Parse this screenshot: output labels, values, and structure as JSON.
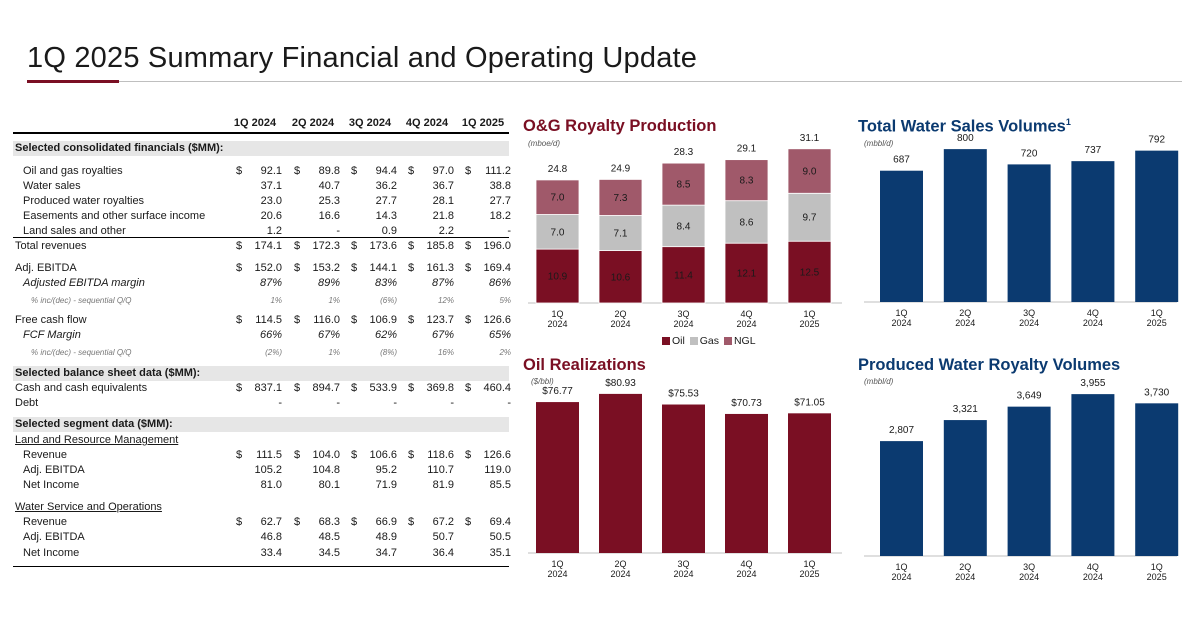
{
  "page": {
    "title": "1Q 2025 Summary Financial and Operating Update"
  },
  "colors": {
    "maroon": "#7a0f23",
    "gray": "#c0c0c0",
    "mauve": "#a0596a",
    "navy": "#0b3a70",
    "title_maroon": "#7a0f23",
    "title_navy": "#0b3a70"
  },
  "table": {
    "columns": [
      "1Q 2024",
      "2Q 2024",
      "3Q 2024",
      "4Q 2024",
      "1Q 2025"
    ],
    "sections": {
      "consolidated": "Selected consolidated financials ($MM):",
      "balance": "Selected balance sheet data ($MM):",
      "segment": "Selected segment data ($MM):"
    },
    "rows": {
      "oil_gas": {
        "label": "Oil and gas royalties",
        "values": [
          "92.1",
          "89.8",
          "94.4",
          "97.0",
          "111.2"
        ]
      },
      "water_sales": {
        "label": "Water sales",
        "values": [
          "37.1",
          "40.7",
          "36.2",
          "36.7",
          "38.8"
        ]
      },
      "prod_water": {
        "label": "Produced water royalties",
        "values": [
          "23.0",
          "25.3",
          "27.7",
          "28.1",
          "27.7"
        ]
      },
      "easements": {
        "label": "Easements and other surface income",
        "values": [
          "20.6",
          "16.6",
          "14.3",
          "21.8",
          "18.2"
        ]
      },
      "land_sales": {
        "label": "Land sales and other",
        "values": [
          "1.2",
          "-",
          "0.9",
          "2.2",
          "-"
        ]
      },
      "total_rev": {
        "label": "Total revenues",
        "values": [
          "174.1",
          "172.3",
          "173.6",
          "185.8",
          "196.0"
        ]
      },
      "adj_ebitda": {
        "label": "Adj. EBITDA",
        "values": [
          "152.0",
          "153.2",
          "144.1",
          "161.3",
          "169.4"
        ]
      },
      "ebitda_margin": {
        "label": "Adjusted EBITDA margin",
        "values": [
          "87%",
          "89%",
          "83%",
          "87%",
          "86%"
        ]
      },
      "ebitda_chg": {
        "label": "% inc/(dec) - sequential Q/Q",
        "values": [
          "1%",
          "1%",
          "(6%)",
          "12%",
          "5%"
        ]
      },
      "fcf": {
        "label": "Free cash flow",
        "values": [
          "114.5",
          "116.0",
          "106.9",
          "123.7",
          "126.6"
        ]
      },
      "fcf_margin": {
        "label": "FCF Margin",
        "values": [
          "66%",
          "67%",
          "62%",
          "67%",
          "65%"
        ]
      },
      "fcf_chg": {
        "label": "% inc/(dec) - sequential Q/Q",
        "values": [
          "(2%)",
          "1%",
          "(8%)",
          "16%",
          "2%"
        ]
      },
      "cash": {
        "label": "Cash and cash equivalents",
        "values": [
          "837.1",
          "894.7",
          "533.9",
          "369.8",
          "460.4"
        ]
      },
      "debt": {
        "label": "Debt",
        "values": [
          "-",
          "-",
          "-",
          "-",
          "-"
        ]
      },
      "lrm_title": {
        "label": "Land and Resource Management"
      },
      "lrm_rev": {
        "label": "Revenue",
        "values": [
          "111.5",
          "104.0",
          "106.6",
          "118.6",
          "126.6"
        ]
      },
      "lrm_ebitda": {
        "label": "Adj. EBITDA",
        "values": [
          "105.2",
          "104.8",
          "95.2",
          "110.7",
          "119.0"
        ]
      },
      "lrm_ni": {
        "label": "Net Income",
        "values": [
          "81.0",
          "80.1",
          "71.9",
          "81.9",
          "85.5"
        ]
      },
      "wso_title": {
        "label": "Water Service and Operations"
      },
      "wso_rev": {
        "label": "Revenue",
        "values": [
          "62.7",
          "68.3",
          "66.9",
          "67.2",
          "69.4"
        ]
      },
      "wso_ebitda": {
        "label": "Adj. EBITDA",
        "values": [
          "46.8",
          "48.5",
          "48.9",
          "50.7",
          "50.5"
        ]
      },
      "wso_ni": {
        "label": "Net Income",
        "values": [
          "33.4",
          "34.5",
          "34.7",
          "36.4",
          "35.1"
        ]
      }
    }
  },
  "chart_data": [
    {
      "type": "bar",
      "stacked": true,
      "title": "O&G Royalty Production",
      "unit": "(mboe/d)",
      "categories": [
        [
          "1Q",
          "2024"
        ],
        [
          "2Q",
          "2024"
        ],
        [
          "3Q",
          "2024"
        ],
        [
          "4Q",
          "2024"
        ],
        [
          "1Q",
          "2025"
        ]
      ],
      "series": [
        {
          "name": "Oil",
          "values": [
            10.9,
            10.6,
            11.4,
            12.1,
            12.5
          ],
          "color": "#7a0f23"
        },
        {
          "name": "Gas",
          "values": [
            7.0,
            7.1,
            8.4,
            8.6,
            9.7
          ],
          "color": "#c0c0c0"
        },
        {
          "name": "NGL",
          "values": [
            7.0,
            7.3,
            8.5,
            8.3,
            9.0
          ],
          "color": "#a0596a"
        }
      ],
      "totals": [
        24.8,
        24.9,
        28.3,
        29.1,
        31.1
      ],
      "ylim": [
        0,
        35
      ],
      "legend": "bottom"
    },
    {
      "type": "bar",
      "title": "Total Water Sales Volumes",
      "title_sup": "1",
      "unit": "(mbbl/d)",
      "categories": [
        [
          "1Q",
          "2024"
        ],
        [
          "2Q",
          "2024"
        ],
        [
          "3Q",
          "2024"
        ],
        [
          "4Q",
          "2024"
        ],
        [
          "1Q",
          "2025"
        ]
      ],
      "values": [
        687,
        800,
        720,
        737,
        792
      ],
      "labels": [
        "687",
        "800",
        "720",
        "737",
        "792"
      ],
      "color": "#0b3a70",
      "ylim": [
        0,
        900
      ]
    },
    {
      "type": "bar",
      "title": "Oil Realizations",
      "unit": "($/bbl)",
      "categories": [
        [
          "1Q",
          "2024"
        ],
        [
          "2Q",
          "2024"
        ],
        [
          "3Q",
          "2024"
        ],
        [
          "4Q",
          "2024"
        ],
        [
          "1Q",
          "2025"
        ]
      ],
      "values": [
        76.77,
        80.93,
        75.53,
        70.73,
        71.05
      ],
      "labels": [
        "$76.77",
        "$80.93",
        "$75.53",
        "$70.73",
        "$71.05"
      ],
      "color": "#7a0f23",
      "ylim": [
        0,
        88
      ]
    },
    {
      "type": "bar",
      "title": "Produced Water Royalty Volumes",
      "unit": "(mbbl/d)",
      "categories": [
        [
          "1Q",
          "2024"
        ],
        [
          "2Q",
          "2024"
        ],
        [
          "3Q",
          "2024"
        ],
        [
          "4Q",
          "2024"
        ],
        [
          "1Q",
          "2025"
        ]
      ],
      "values": [
        2807,
        3321,
        3649,
        3955,
        3730
      ],
      "labels": [
        "2,807",
        "3,321",
        "3,649",
        "3,955",
        "3,730"
      ],
      "color": "#0b3a70",
      "ylim": [
        0,
        4300
      ]
    }
  ]
}
